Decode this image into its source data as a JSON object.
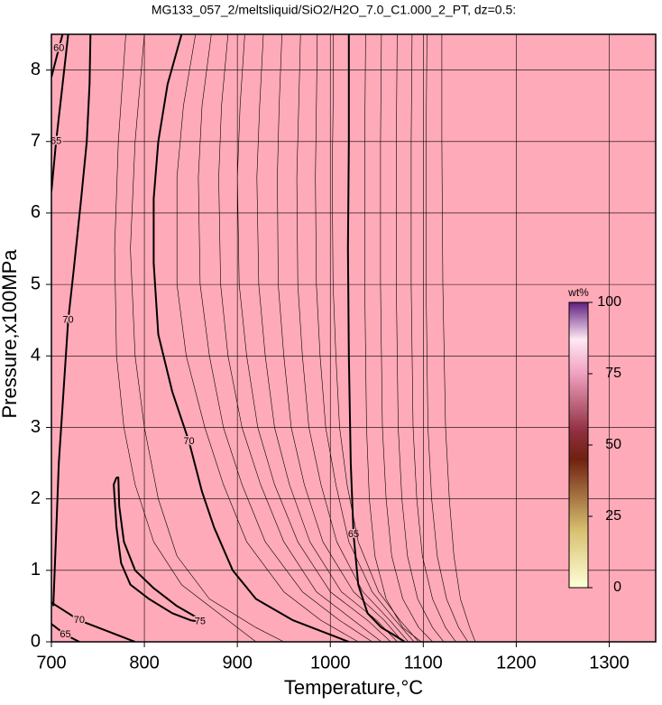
{
  "chart_data": {
    "type": "contour",
    "title": "MG133_057_2/meltsliquid/SiO2/H2O_7.0_C1.000_2_PT, dz=0.5:",
    "x_label": "Temperature,°C",
    "y_label": "Pressure,x100MPa",
    "xlim": [
      700,
      1350
    ],
    "ylim": [
      0,
      8.5
    ],
    "xticks": [
      700,
      800,
      900,
      1000,
      1100,
      1200,
      1300
    ],
    "yticks": [
      0,
      1,
      2,
      3,
      4,
      5,
      6,
      7,
      8
    ],
    "grid": true,
    "background": "#ffaab8",
    "line_color": "#000000",
    "colorbar": {
      "label": "wt%",
      "lim": [
        0,
        100
      ],
      "ticks": [
        0,
        25,
        50,
        75,
        100
      ]
    },
    "contours": [
      {
        "level": 70,
        "major": true,
        "x": [
          702,
          705,
          708,
          713,
          718,
          724,
          732,
          738,
          741,
          742
        ],
        "y": [
          0.5,
          1.5,
          2.5,
          3.5,
          4.5,
          5.2,
          6.2,
          7.0,
          7.8,
          8.5
        ]
      },
      {
        "level": 70,
        "major": true,
        "x": [
          840,
          825,
          815,
          810,
          810,
          815,
          830,
          848,
          862,
          875,
          895,
          920,
          960,
          1000,
          1020
        ],
        "y": [
          8.5,
          7.8,
          7.0,
          6.2,
          5.3,
          4.3,
          3.5,
          2.8,
          2.1,
          1.6,
          1.0,
          0.6,
          0.3,
          0.1,
          0.0
        ]
      },
      {
        "level": 65,
        "major": true,
        "x": [
          1020,
          1020,
          1019,
          1020,
          1022,
          1025,
          1030,
          1040,
          1055,
          1068,
          1080
        ],
        "y": [
          8.5,
          7.0,
          5.5,
          4.0,
          2.5,
          1.5,
          0.8,
          0.4,
          0.2,
          0.1,
          0.0
        ]
      },
      {
        "level": 75,
        "major": true,
        "x": [
          770,
          767,
          770,
          775,
          785,
          805,
          830,
          850,
          860,
          855,
          835,
          810,
          790,
          778,
          773,
          772,
          770
        ],
        "y": [
          2.3,
          2.2,
          1.6,
          1.1,
          0.8,
          0.6,
          0.4,
          0.3,
          0.28,
          0.35,
          0.5,
          0.75,
          1.0,
          1.4,
          1.9,
          2.3,
          2.3
        ]
      },
      {
        "level": 65,
        "major": true,
        "x": [
          700,
          705,
          712,
          718
        ],
        "y": [
          6.3,
          7.0,
          7.8,
          8.5
        ]
      },
      {
        "level": 60,
        "major": true,
        "x": [
          700,
          708,
          712
        ],
        "y": [
          7.9,
          8.3,
          8.5
        ]
      },
      {
        "level": 65,
        "major": true,
        "x": [
          700,
          715,
          730
        ],
        "y": [
          0.25,
          0.1,
          0.0
        ]
      },
      {
        "level": 70,
        "major": true,
        "x": [
          700,
          730,
          760,
          790
        ],
        "y": [
          0.55,
          0.3,
          0.15,
          0.0
        ]
      },
      {
        "level": 70.5,
        "major": false,
        "x": [
          800,
          790,
          785,
          790,
          800,
          815,
          835,
          870,
          920,
          950
        ],
        "y": [
          8.5,
          7.0,
          5.5,
          4.0,
          3.0,
          2.0,
          1.2,
          0.6,
          0.2,
          0.0
        ]
      },
      {
        "level": 71,
        "major": false,
        "x": [
          780,
          772,
          768,
          770,
          778,
          790,
          810,
          840,
          890,
          920
        ],
        "y": [
          8.5,
          7.0,
          5.5,
          4.0,
          3.0,
          2.2,
          1.4,
          0.8,
          0.3,
          0.0
        ]
      },
      {
        "level": 69.5,
        "major": false,
        "x": [
          855,
          842,
          835,
          835,
          845,
          865,
          885,
          910,
          950,
          990,
          1030
        ],
        "y": [
          8.5,
          7.5,
          6.5,
          5.0,
          4.0,
          3.0,
          2.2,
          1.4,
          0.7,
          0.3,
          0.0
        ]
      },
      {
        "level": 69,
        "major": false,
        "x": [
          872,
          862,
          858,
          860,
          870,
          885,
          905,
          930,
          970,
          1010,
          1045
        ],
        "y": [
          8.5,
          7.5,
          6.5,
          5.0,
          4.0,
          3.0,
          2.2,
          1.4,
          0.7,
          0.3,
          0.0
        ]
      },
      {
        "level": 68.5,
        "major": false,
        "x": [
          890,
          883,
          880,
          882,
          890,
          905,
          925,
          950,
          985,
          1025,
          1055
        ],
        "y": [
          8.5,
          7.5,
          6.5,
          5.0,
          4.0,
          3.0,
          2.2,
          1.4,
          0.7,
          0.3,
          0.0
        ]
      },
      {
        "level": 68,
        "major": false,
        "x": [
          908,
          903,
          900,
          902,
          910,
          922,
          940,
          965,
          1000,
          1040,
          1065
        ],
        "y": [
          8.5,
          7.5,
          6.5,
          5.0,
          4.0,
          3.0,
          2.2,
          1.4,
          0.7,
          0.3,
          0.0
        ]
      },
      {
        "level": 67.5,
        "major": false,
        "x": [
          928,
          924,
          921,
          923,
          930,
          940,
          956,
          978,
          1012,
          1050,
          1072
        ],
        "y": [
          8.5,
          7.5,
          6.5,
          5.0,
          4.0,
          3.0,
          2.2,
          1.4,
          0.7,
          0.3,
          0.0
        ]
      },
      {
        "level": 67,
        "major": false,
        "x": [
          948,
          945,
          943,
          944,
          950,
          958,
          972,
          992,
          1025,
          1058,
          1078
        ],
        "y": [
          8.5,
          7.5,
          6.5,
          5.0,
          4.0,
          3.0,
          2.2,
          1.4,
          0.7,
          0.3,
          0.0
        ]
      },
      {
        "level": 66.5,
        "major": false,
        "x": [
          968,
          966,
          964,
          965,
          970,
          977,
          990,
          1007,
          1035,
          1064,
          1084
        ],
        "y": [
          8.5,
          7.5,
          6.5,
          5.0,
          4.0,
          3.0,
          2.2,
          1.4,
          0.7,
          0.3,
          0.0
        ]
      },
      {
        "level": 66,
        "major": false,
        "x": [
          986,
          985,
          984,
          985,
          989,
          995,
          1006,
          1020,
          1045,
          1070,
          1090
        ],
        "y": [
          8.5,
          7.5,
          6.5,
          5.0,
          4.0,
          3.0,
          2.2,
          1.4,
          0.7,
          0.3,
          0.0
        ]
      },
      {
        "level": 65.5,
        "major": false,
        "x": [
          1003,
          1003,
          1002,
          1003,
          1006,
          1010,
          1018,
          1030,
          1052,
          1075,
          1095
        ],
        "y": [
          8.5,
          7.5,
          6.5,
          5.0,
          4.0,
          3.0,
          2.2,
          1.4,
          0.7,
          0.3,
          0.0
        ]
      },
      {
        "level": 64.5,
        "major": false,
        "x": [
          1038,
          1037,
          1037,
          1039,
          1042,
          1048,
          1060,
          1078,
          1098
        ],
        "y": [
          8.5,
          7.0,
          5.0,
          3.0,
          2.0,
          1.2,
          0.6,
          0.2,
          0.0
        ]
      },
      {
        "level": 64,
        "major": false,
        "x": [
          1055,
          1054,
          1054,
          1056,
          1060,
          1066,
          1078,
          1095,
          1110
        ],
        "y": [
          8.5,
          7.0,
          5.0,
          3.0,
          2.0,
          1.2,
          0.6,
          0.2,
          0.0
        ]
      },
      {
        "level": 63.5,
        "major": false,
        "x": [
          1072,
          1071,
          1071,
          1073,
          1077,
          1083,
          1094,
          1110,
          1122
        ],
        "y": [
          8.5,
          7.0,
          5.0,
          3.0,
          2.0,
          1.2,
          0.6,
          0.2,
          0.0
        ]
      },
      {
        "level": 63,
        "major": false,
        "x": [
          1088,
          1087,
          1087,
          1089,
          1093,
          1099,
          1110,
          1124,
          1135
        ],
        "y": [
          8.5,
          7.0,
          5.0,
          3.0,
          2.0,
          1.2,
          0.6,
          0.2,
          0.0
        ]
      },
      {
        "level": 62.5,
        "major": false,
        "x": [
          1104,
          1103,
          1103,
          1105,
          1109,
          1115,
          1125,
          1138,
          1148
        ],
        "y": [
          8.5,
          7.0,
          5.0,
          3.0,
          2.0,
          1.2,
          0.6,
          0.2,
          0.0
        ]
      },
      {
        "level": 62,
        "major": false,
        "x": [
          1120,
          1120,
          1121,
          1124,
          1128,
          1133,
          1140,
          1150,
          1156
        ],
        "y": [
          8.5,
          7.0,
          5.0,
          3.0,
          2.0,
          1.2,
          0.6,
          0.2,
          0.0
        ]
      }
    ]
  }
}
